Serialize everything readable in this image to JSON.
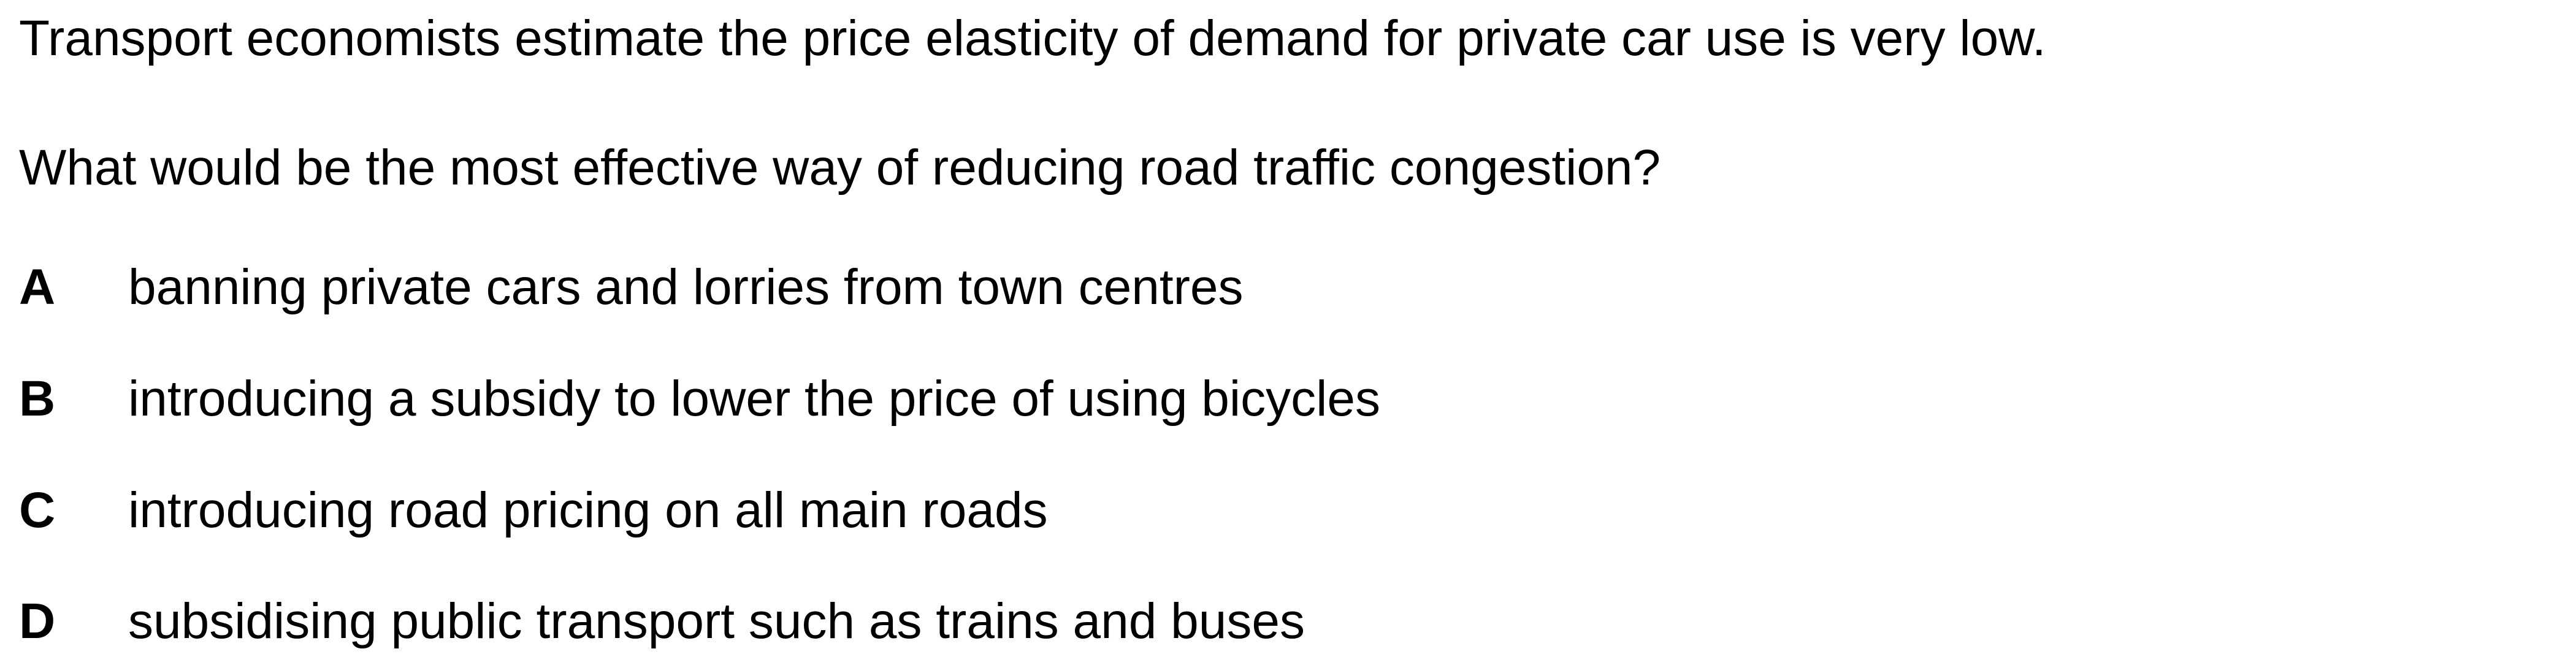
{
  "question": {
    "statement": "Transport economists estimate the price elasticity of demand for private car use is very low.",
    "prompt": "What would be the most effective way of reducing road traffic congestion?",
    "options": [
      {
        "letter": "A",
        "text": "banning private cars and lorries from town centres"
      },
      {
        "letter": "B",
        "text": "introducing a subsidy to lower the price of using bicycles"
      },
      {
        "letter": "C",
        "text": "introducing road pricing on all main roads"
      },
      {
        "letter": "D",
        "text": "subsidising public transport such as trains and buses"
      }
    ]
  }
}
